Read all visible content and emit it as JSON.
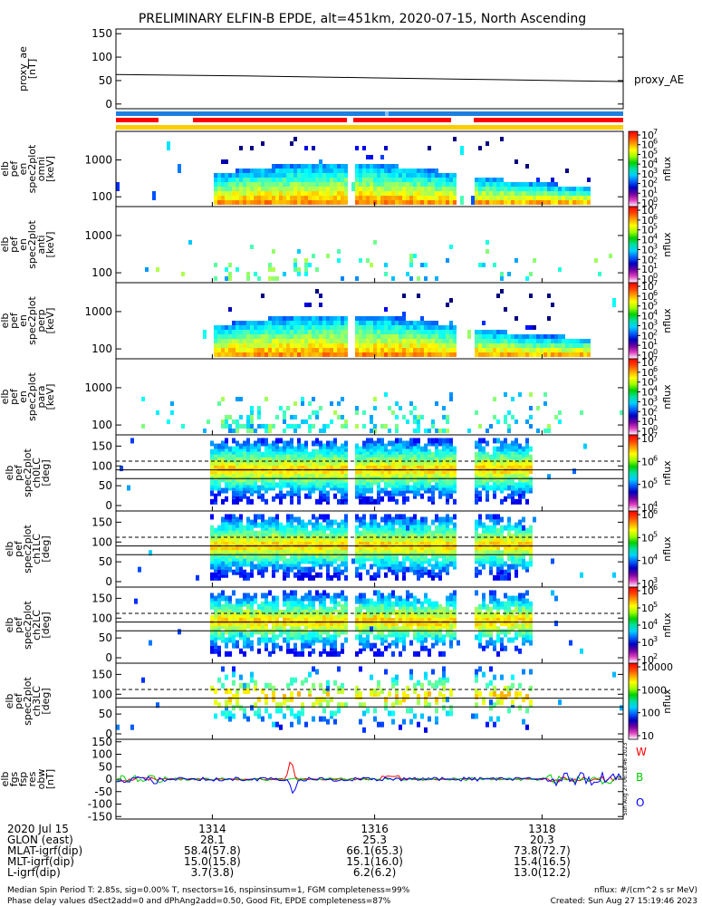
{
  "title": "PRELIMINARY ELFIN-B EPDE, alt=451km, 2020-07-15, North Ascending",
  "chart_data": [
    {
      "type": "line",
      "name": "proxy_ae",
      "ylabel_lines": [
        "proxy_ae",
        "[nT]"
      ],
      "yticks": [
        "150",
        "100",
        "50",
        "0"
      ],
      "ylim": [
        -10,
        160
      ],
      "xlim": [
        0,
        1
      ],
      "points": [
        [
          0,
          63
        ],
        [
          0.25,
          60
        ],
        [
          0.5,
          56
        ],
        [
          0.75,
          52
        ],
        [
          1,
          48
        ]
      ],
      "side_label": "proxy_AE"
    },
    {
      "type": "heatmap",
      "ylabel_lines": [
        "elb",
        "pef",
        "en",
        "spec2plot",
        "omni",
        "[keV]"
      ],
      "yticks": [
        "1000",
        "100"
      ],
      "colorbar_label": "nflux",
      "colorbar_ticks": [
        "10",
        "10",
        "10",
        "10",
        "10",
        "10",
        "10",
        "10"
      ],
      "colorbar_exps": [
        "7",
        "6",
        "5",
        "4",
        "3",
        "2",
        "1",
        "0"
      ]
    },
    {
      "type": "heatmap",
      "ylabel_lines": [
        "elb",
        "pef",
        "en",
        "spec2plot",
        "anti",
        "[keV]"
      ],
      "yticks": [
        "1000",
        "100"
      ],
      "colorbar_label": "nflux",
      "colorbar_ticks": [
        "10",
        "10",
        "10",
        "10",
        "10",
        "10",
        "10",
        "10"
      ],
      "colorbar_exps": [
        "7",
        "6",
        "5",
        "4",
        "3",
        "2",
        "1",
        "0"
      ]
    },
    {
      "type": "heatmap",
      "ylabel_lines": [
        "elb",
        "pef",
        "en",
        "spec2plot",
        "perp",
        "[keV]"
      ],
      "yticks": [
        "1000",
        "100"
      ],
      "colorbar_label": "nflux",
      "colorbar_ticks": [
        "10",
        "10",
        "10",
        "10",
        "10",
        "10",
        "10",
        "10"
      ],
      "colorbar_exps": [
        "7",
        "6",
        "5",
        "4",
        "3",
        "2",
        "1",
        "0"
      ]
    },
    {
      "type": "heatmap",
      "ylabel_lines": [
        "elb",
        "pef",
        "en",
        "spec2plot",
        "para",
        "[keV]"
      ],
      "yticks": [
        "1000",
        "100"
      ],
      "colorbar_label": "nflux",
      "colorbar_ticks": [
        "10",
        "10",
        "10",
        "10",
        "10",
        "10",
        "10",
        "10"
      ],
      "colorbar_exps": [
        "7",
        "6",
        "5",
        "4",
        "3",
        "2",
        "1",
        "0"
      ]
    },
    {
      "type": "heatmap",
      "ylabel_lines": [
        "elb",
        "pef",
        "spec2plot",
        "ch0LC",
        "[deg]"
      ],
      "yticks": [
        "150",
        "100",
        "50",
        "0"
      ],
      "colorbar_label": "nflux",
      "colorbar_ticks": [
        "10",
        "10",
        "10",
        "10"
      ],
      "colorbar_exps": [
        "7",
        "6",
        "5",
        "4"
      ]
    },
    {
      "type": "heatmap",
      "ylabel_lines": [
        "elb",
        "pef",
        "spec2plot",
        "ch1LC",
        "[deg]"
      ],
      "yticks": [
        "150",
        "100",
        "50",
        "0"
      ],
      "colorbar_label": "nflux",
      "colorbar_ticks": [
        "10",
        "10",
        "10",
        "10"
      ],
      "colorbar_exps": [
        "6",
        "5",
        "4",
        "3"
      ]
    },
    {
      "type": "heatmap",
      "ylabel_lines": [
        "elb",
        "pef",
        "spec2plot",
        "ch2LC",
        "[deg]"
      ],
      "yticks": [
        "150",
        "100",
        "50",
        "0"
      ],
      "colorbar_label": "nflux",
      "colorbar_ticks": [
        "10",
        "10",
        "10",
        "10",
        "10"
      ],
      "colorbar_exps": [
        "6",
        "5",
        "4",
        "3",
        "2"
      ]
    },
    {
      "type": "heatmap",
      "ylabel_lines": [
        "elb",
        "pef",
        "spec2plot",
        "ch3LC",
        "[deg]"
      ],
      "yticks": [
        "150",
        "100",
        "50",
        "0"
      ],
      "colorbar_label": "nflux",
      "colorbar_ticks": [
        "10000",
        "1000",
        "100",
        "10"
      ],
      "colorbar_exps": []
    },
    {
      "type": "line",
      "ylabel_lines": [
        "elb",
        "fgs",
        "fsp",
        "res",
        "obw",
        "[nT]"
      ],
      "yticks": [
        "150",
        "100",
        "50",
        "0",
        "-50",
        "-100",
        "-150"
      ],
      "ylim": [
        -160,
        160
      ],
      "legend": [
        {
          "label": "W",
          "color": "#ff0000"
        },
        {
          "label": "B",
          "color": "#00cc00"
        },
        {
          "label": "O",
          "color": "#0000ff"
        }
      ],
      "side_text": "Sun Aug 27 06:18:46 2023"
    }
  ],
  "xaxis": {
    "ticks": [
      {
        "label": "1314",
        "frac": 0.19
      },
      {
        "label": "1316",
        "frac": 0.51
      },
      {
        "label": "1318",
        "frac": 0.84
      }
    ],
    "rows": [
      {
        "name": "2020 Jul 15",
        "values": [
          "1314",
          "1316",
          "1318"
        ]
      },
      {
        "name": "GLON (east)",
        "values": [
          "28.1",
          "25.3",
          "20.3"
        ]
      },
      {
        "name": "MLAT-igrf(dip)",
        "values": [
          "58.4(57.8)",
          "66.1(65.3)",
          "73.8(72.7)"
        ]
      },
      {
        "name": "MLT-igrf(dip)",
        "values": [
          "15.0(15.8)",
          "15.1(16.0)",
          "15.4(16.5)"
        ]
      },
      {
        "name": "L-igrf(dip)",
        "values": [
          "3.7(3.8)",
          "6.2(6.2)",
          "13.0(12.2)"
        ]
      }
    ]
  },
  "footer": {
    "line1": "Median Spin Period T: 2.85s, sig=0.00% T, nsectors=16, nspinsinsum=1, FGM completeness=99%",
    "line2": "Phase delay values dSect2add=0 and dPhAng2add=0.50, Good Fit, EPDE completeness=87%",
    "right1": "nflux: #/(cm^2 s sr MeV)",
    "right2": "Created: Sun Aug 27 15:19:46 2023"
  }
}
